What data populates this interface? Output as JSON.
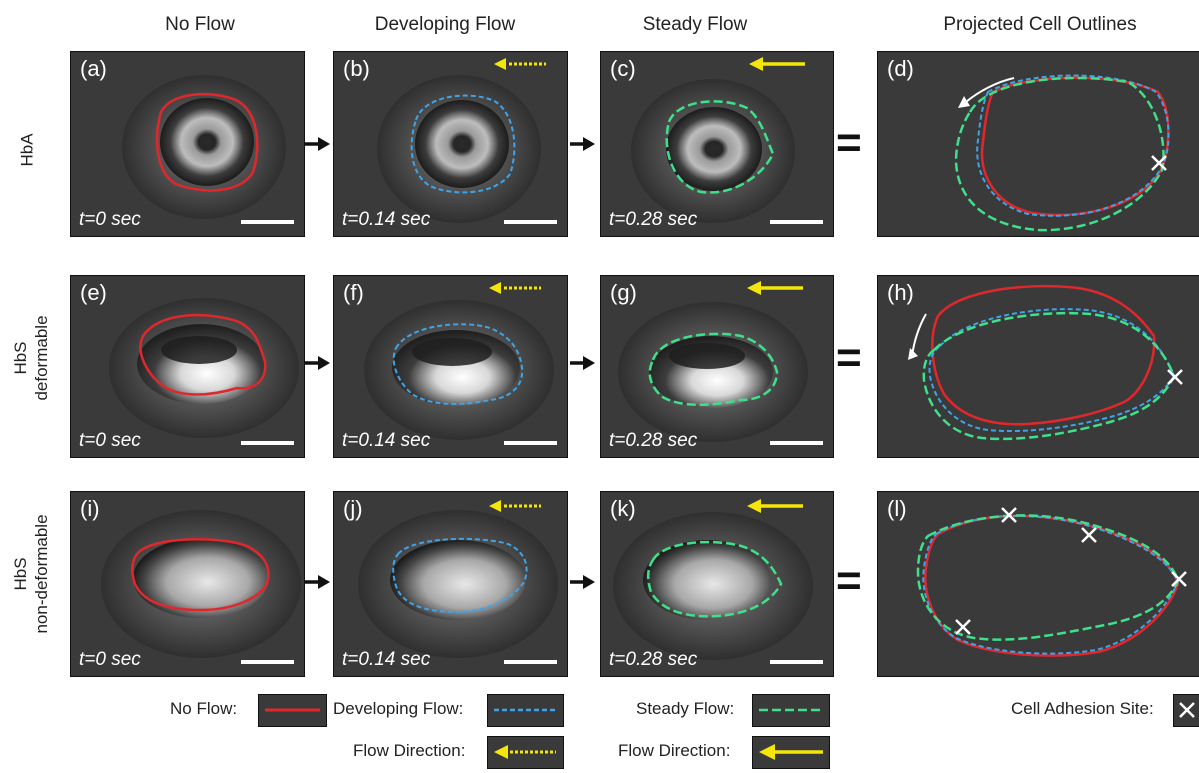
{
  "columns": [
    "No Flow",
    "Developing Flow",
    "Steady Flow",
    "Projected Cell Outlines"
  ],
  "rows": [
    {
      "line1": "HbA",
      "line2": ""
    },
    {
      "line1": "HbS",
      "line2": "deformable"
    },
    {
      "line1": "HbS",
      "line2": "non-deformable"
    }
  ],
  "panel_labels": [
    "(a)",
    "(b)",
    "(c)",
    "(d)",
    "(e)",
    "(f)",
    "(g)",
    "(h)",
    "(i)",
    "(j)",
    "(k)",
    "(l)"
  ],
  "times": [
    "t=0 sec",
    "t=0.14 sec",
    "t=0.28 sec"
  ],
  "equals": "=",
  "legend": {
    "no_flow": "No Flow:",
    "developing_flow": "Developing Flow:",
    "steady_flow": "Steady Flow:",
    "adhesion": "Cell Adhesion Site:",
    "flow_direction_dev": "Flow Direction:",
    "flow_direction_steady": "Flow Direction:"
  },
  "colors": {
    "no_flow": "#e0282c",
    "developing_flow": "#3fa3e8",
    "steady_flow": "#3ee08a",
    "flow_arrow": "#f5e60a",
    "panel_bg": "#3a3a3a",
    "adhesion_mark": "#ffffff"
  },
  "icons": {
    "sequence_arrow": "black-right-arrow",
    "flow_arrow_dashed": "yellow-dashed-left-arrow",
    "flow_arrow_solid": "yellow-solid-left-arrow",
    "rotation_arrow": "white-curved-arrow",
    "adhesion_mark": "white-x-mark"
  }
}
